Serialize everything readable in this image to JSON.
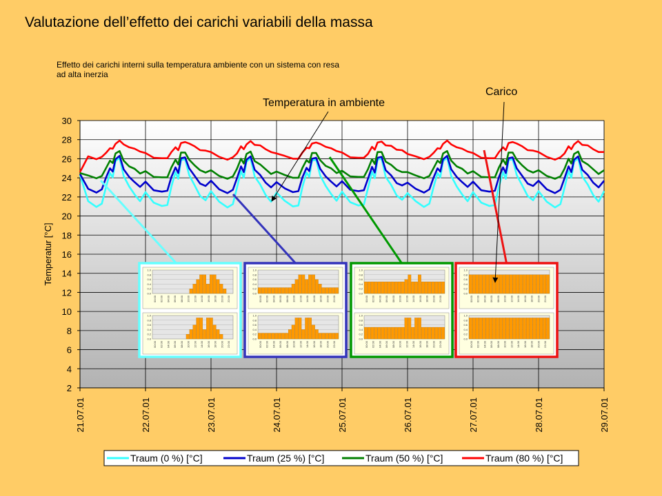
{
  "slide": {
    "title": "Valutazione dell’effetto  dei carichi variabili della massa",
    "note": "Effetto dei carichi interni sulla temperatura ambiente con un sistema con resa ad alta inerzia"
  },
  "annotations": {
    "temperature_label": "Temperatura in ambiente",
    "load_label": "Carico"
  },
  "chart_data": {
    "type": "line",
    "title": "",
    "xlabel": "",
    "ylabel": "Temperatur [°C]",
    "ylim": [
      2,
      30
    ],
    "yticks": [
      "2",
      "4",
      "6",
      "8",
      "10",
      "12",
      "14",
      "16",
      "18",
      "20",
      "22",
      "24",
      "26",
      "28",
      "30"
    ],
    "xticks": [
      "21.07.01",
      "22.07.01",
      "23.07.01",
      "24.07.01",
      "25.07.01",
      "26.07.01",
      "27.07.01",
      "28.07.01",
      "29.07.01"
    ],
    "xlim": [
      "21.07.01",
      "29.07.01"
    ],
    "grid": true,
    "legend_position": "bottom",
    "daily_profile_hours": [
      0,
      3,
      6,
      8,
      9.5,
      11,
      12,
      13,
      14.5,
      16,
      18,
      20,
      22
    ],
    "series": [
      {
        "name": "Traum (0 %) [°C]",
        "color": "#33FFFF",
        "start_value": 24.3,
        "daily_profile": [
          22.5,
          21.5,
          21.0,
          21.2,
          23.0,
          24.6,
          24.0,
          25.8,
          26.0,
          24.2,
          23.2,
          22.2,
          21.6
        ]
      },
      {
        "name": "Traum (25 %) [°C]",
        "color": "#0000CC",
        "start_value": 24.4,
        "daily_profile": [
          23.6,
          22.8,
          22.5,
          22.7,
          24.0,
          25.1,
          24.6,
          26.0,
          26.2,
          24.9,
          24.2,
          23.5,
          23.1
        ]
      },
      {
        "name": "Traum (50 %) [°C]",
        "color": "#008000",
        "start_value": 24.5,
        "daily_profile": [
          24.7,
          24.2,
          24.0,
          24.1,
          25.0,
          25.9,
          25.5,
          26.6,
          26.7,
          25.8,
          25.3,
          24.9,
          24.5
        ]
      },
      {
        "name": "Traum (80 %) [°C]",
        "color": "#FF0000",
        "start_value": 24.6,
        "daily_profile": [
          26.6,
          26.2,
          26.0,
          26.1,
          26.6,
          27.2,
          27.0,
          27.6,
          27.8,
          27.5,
          27.3,
          27.0,
          26.8
        ]
      }
    ],
    "load_profiles": [
      {
        "series": "Traum (0 %) [°C]",
        "color": "#66FFFF",
        "values_top": [
          0,
          0,
          0,
          0,
          0,
          0,
          0,
          0,
          0,
          0,
          0,
          0.2,
          0.4,
          0.6,
          0.8,
          0.8,
          0.4,
          0.8,
          0.8,
          0.6,
          0.4,
          0.2,
          0,
          0
        ],
        "values_bottom": [
          0,
          0,
          0,
          0,
          0,
          0,
          0,
          0,
          0,
          0,
          0.2,
          0.4,
          0.6,
          0.9,
          0.9,
          0.4,
          0.9,
          0.9,
          0.6,
          0.4,
          0.2,
          0,
          0,
          0
        ]
      },
      {
        "series": "Traum (25 %) [°C]",
        "color": "#3333BB",
        "values_top": [
          0.25,
          0.25,
          0.25,
          0.25,
          0.25,
          0.25,
          0.25,
          0.25,
          0.25,
          0.25,
          0.4,
          0.6,
          0.8,
          0.8,
          0.6,
          0.8,
          0.8,
          0.6,
          0.4,
          0.25,
          0.25,
          0.25,
          0.25,
          0.25
        ],
        "values_bottom": [
          0.25,
          0.25,
          0.25,
          0.25,
          0.25,
          0.25,
          0.25,
          0.25,
          0.25,
          0.4,
          0.6,
          0.9,
          0.9,
          0.4,
          0.9,
          0.9,
          0.6,
          0.4,
          0.25,
          0.25,
          0.25,
          0.25,
          0.25,
          0.25
        ]
      },
      {
        "series": "Traum (50 %) [°C]",
        "color": "#009900",
        "values_top": [
          0.5,
          0.5,
          0.5,
          0.5,
          0.5,
          0.5,
          0.5,
          0.5,
          0.5,
          0.5,
          0.5,
          0.5,
          0.6,
          0.8,
          0.5,
          0.5,
          0.8,
          0.5,
          0.5,
          0.5,
          0.5,
          0.5,
          0.5,
          0.5
        ],
        "values_bottom": [
          0.5,
          0.5,
          0.5,
          0.5,
          0.5,
          0.5,
          0.5,
          0.5,
          0.5,
          0.5,
          0.5,
          0.5,
          0.9,
          0.9,
          0.5,
          0.9,
          0.9,
          0.5,
          0.5,
          0.5,
          0.5,
          0.5,
          0.5,
          0.5
        ]
      },
      {
        "series": "Traum (80 %) [°C]",
        "color": "#EE1111",
        "values_top": [
          0.8,
          0.8,
          0.8,
          0.8,
          0.8,
          0.8,
          0.8,
          0.8,
          0.8,
          0.8,
          0.8,
          0.8,
          0.8,
          0.8,
          0.8,
          0.8,
          0.8,
          0.8,
          0.8,
          0.8,
          0.8,
          0.8,
          0.8,
          0.8
        ],
        "values_bottom": [
          0.9,
          0.9,
          0.9,
          0.9,
          0.9,
          0.9,
          0.9,
          0.9,
          0.9,
          0.9,
          0.9,
          0.9,
          0.9,
          0.9,
          0.9,
          0.9,
          0.9,
          0.9,
          0.9,
          0.9,
          0.9,
          0.9,
          0.9,
          0.9
        ]
      }
    ]
  }
}
